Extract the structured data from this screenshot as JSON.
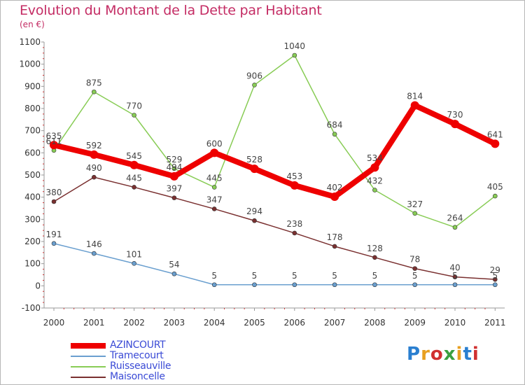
{
  "title": "Evolution du Montant de la Dette par Habitant",
  "subtitle": "(en €)",
  "logo": {
    "text": "Proxiti"
  },
  "chart_data": {
    "type": "line",
    "title": "Evolution du Montant de la Dette par Habitant",
    "subtitle": "(en €)",
    "x": [
      "2000",
      "2001",
      "2002",
      "2003",
      "2004",
      "2005",
      "2006",
      "2007",
      "2008",
      "2009",
      "2010",
      "2011"
    ],
    "ylim": [
      -100,
      1100
    ],
    "yticks": [
      "-100",
      "0",
      "100",
      "200",
      "300",
      "400",
      "500",
      "600",
      "700",
      "800",
      "900",
      "1000",
      "1100"
    ],
    "grid": false,
    "legend_position": "bottom-left",
    "series": [
      {
        "name": "AZINCOURT",
        "color": "#ee0000",
        "values": [
          635,
          592,
          545,
          494,
          600,
          528,
          453,
          402,
          534,
          814,
          730,
          641
        ]
      },
      {
        "name": "Tramecourt",
        "color": "#6a9fcf",
        "values": [
          191,
          146,
          101,
          54,
          5,
          5,
          5,
          5,
          5,
          5,
          5,
          5
        ]
      },
      {
        "name": "Ruisseauville",
        "color": "#88cc55",
        "values": [
          611,
          875,
          770,
          529,
          445,
          906,
          1040,
          684,
          432,
          327,
          264,
          405
        ]
      },
      {
        "name": "Maisoncelle",
        "color": "#7a3030",
        "values": [
          380,
          490,
          445,
          397,
          347,
          294,
          238,
          178,
          128,
          78,
          40,
          29
        ]
      }
    ]
  }
}
